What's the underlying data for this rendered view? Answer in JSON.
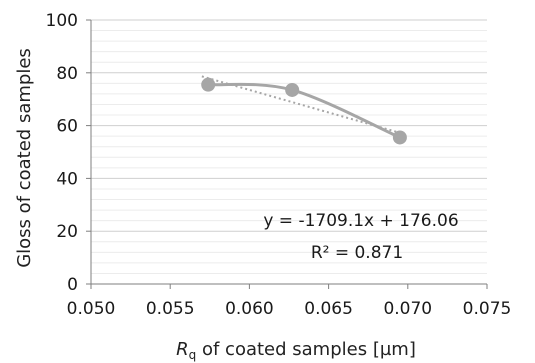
{
  "chart_data": {
    "type": "scatter",
    "x": [
      0.0574,
      0.0627,
      0.0695
    ],
    "series": [
      {
        "values": [
          75.5,
          73.5,
          55.5
        ],
        "color": "#a6a6a6",
        "style": "smooth line with circle markers"
      }
    ],
    "trendline": {
      "type": "linear",
      "slope": -1709.1,
      "intercept": 176.06,
      "style": "dotted",
      "equation_label": "y = -1709.1x + 176.06",
      "r2_label": "R² = 0.871"
    },
    "xlabel": {
      "italic_symbol": "R",
      "subscript": "q",
      "rest": " of coated samples [µm]"
    },
    "ylabel": "Gloss of coated samples",
    "xlim": [
      0.05,
      0.075
    ],
    "ylim": [
      0,
      100
    ],
    "xticks": [
      "0.050",
      "0.055",
      "0.060",
      "0.065",
      "0.070",
      "0.075"
    ],
    "yticks": [
      "0",
      "20",
      "40",
      "60",
      "80",
      "100"
    ],
    "grid": "horizontal",
    "legend": "none"
  }
}
